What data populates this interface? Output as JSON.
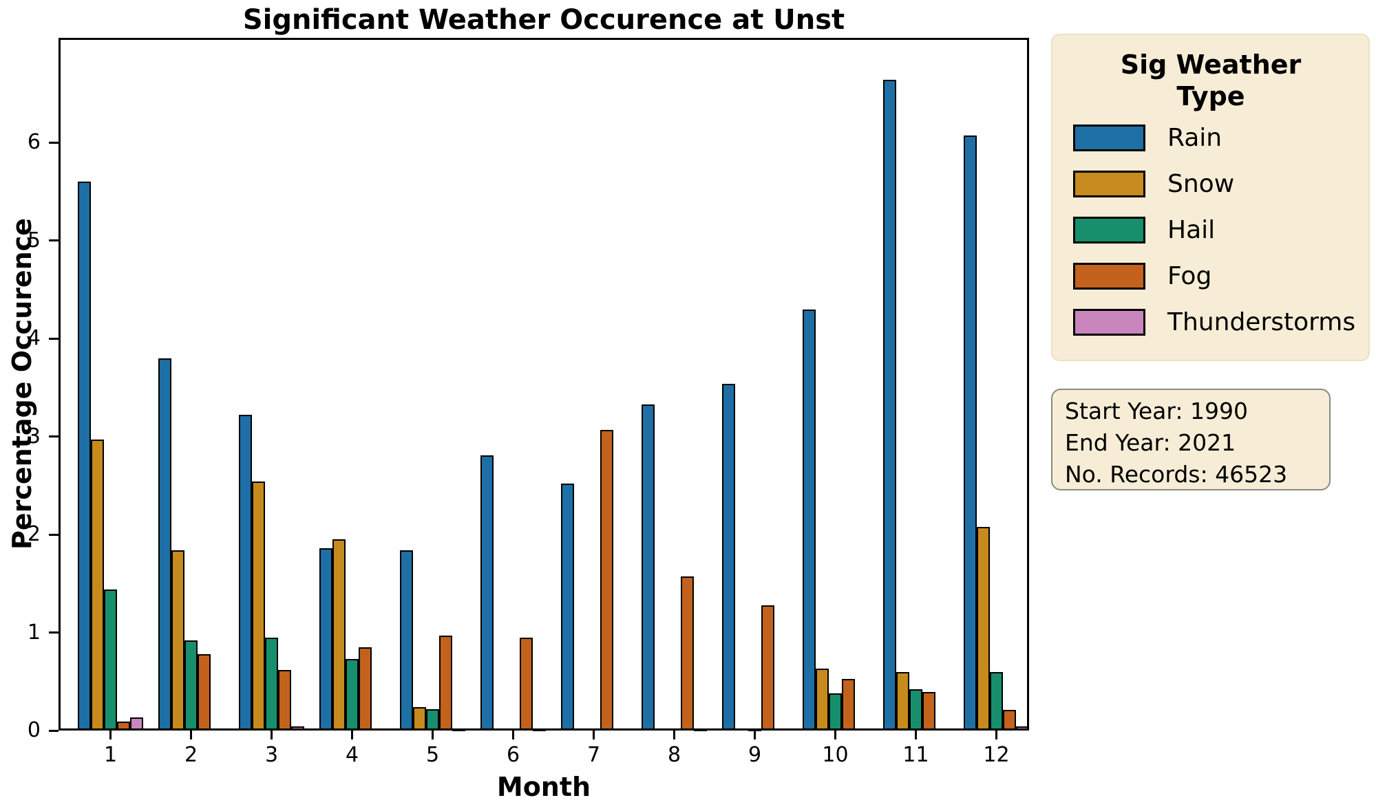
{
  "chart_data": {
    "type": "bar",
    "title": "Significant Weather Occurence at Unst",
    "xlabel": "Month",
    "ylabel": "Percentage Occurence",
    "categories": [
      "1",
      "2",
      "3",
      "4",
      "5",
      "6",
      "7",
      "8",
      "9",
      "10",
      "11",
      "12"
    ],
    "yticks": [
      0,
      1,
      2,
      3,
      4,
      5,
      6
    ],
    "ylim": [
      0,
      7.07
    ],
    "grid": false,
    "legend_position": "outside-right",
    "series": [
      {
        "name": "Rain",
        "color": "#1e6fa5",
        "values": [
          5.6,
          3.8,
          3.22,
          1.86,
          1.84,
          2.81,
          2.52,
          3.33,
          3.54,
          4.3,
          6.64,
          6.07
        ]
      },
      {
        "name": "Snow",
        "color": "#c68a1d",
        "values": [
          2.97,
          1.84,
          2.54,
          1.95,
          0.24,
          0,
          0,
          0,
          0,
          0.63,
          0.6,
          2.08
        ]
      },
      {
        "name": "Hail",
        "color": "#178f6d",
        "values": [
          1.44,
          0.92,
          0.95,
          0.73,
          0.22,
          0,
          0,
          0,
          0.02,
          0.38,
          0.42,
          0.6
        ]
      },
      {
        "name": "Fog",
        "color": "#c2621d",
        "values": [
          0.09,
          0.78,
          0.62,
          0.85,
          0.97,
          0.95,
          3.07,
          1.57,
          1.28,
          0.53,
          0.39,
          0.21
        ]
      },
      {
        "name": "Thunderstorms",
        "color": "#c985bd",
        "values": [
          0.13,
          0,
          0.04,
          0,
          0.02,
          0.02,
          0,
          0.02,
          0,
          0,
          0,
          0.04
        ]
      }
    ]
  },
  "legend": {
    "title": "Sig Weather\nType",
    "entries": [
      "Rain",
      "Snow",
      "Hail",
      "Fog",
      "Thunderstorms"
    ]
  },
  "info_box": {
    "lines": [
      "Start Year: 1990",
      "End Year: 2021",
      "No. Records: 46523"
    ]
  },
  "colors": {
    "panel_background": "#f7edd6",
    "info_border": "#8a8a83",
    "bar_edge": "#000000",
    "axes_edge": "#000000"
  }
}
